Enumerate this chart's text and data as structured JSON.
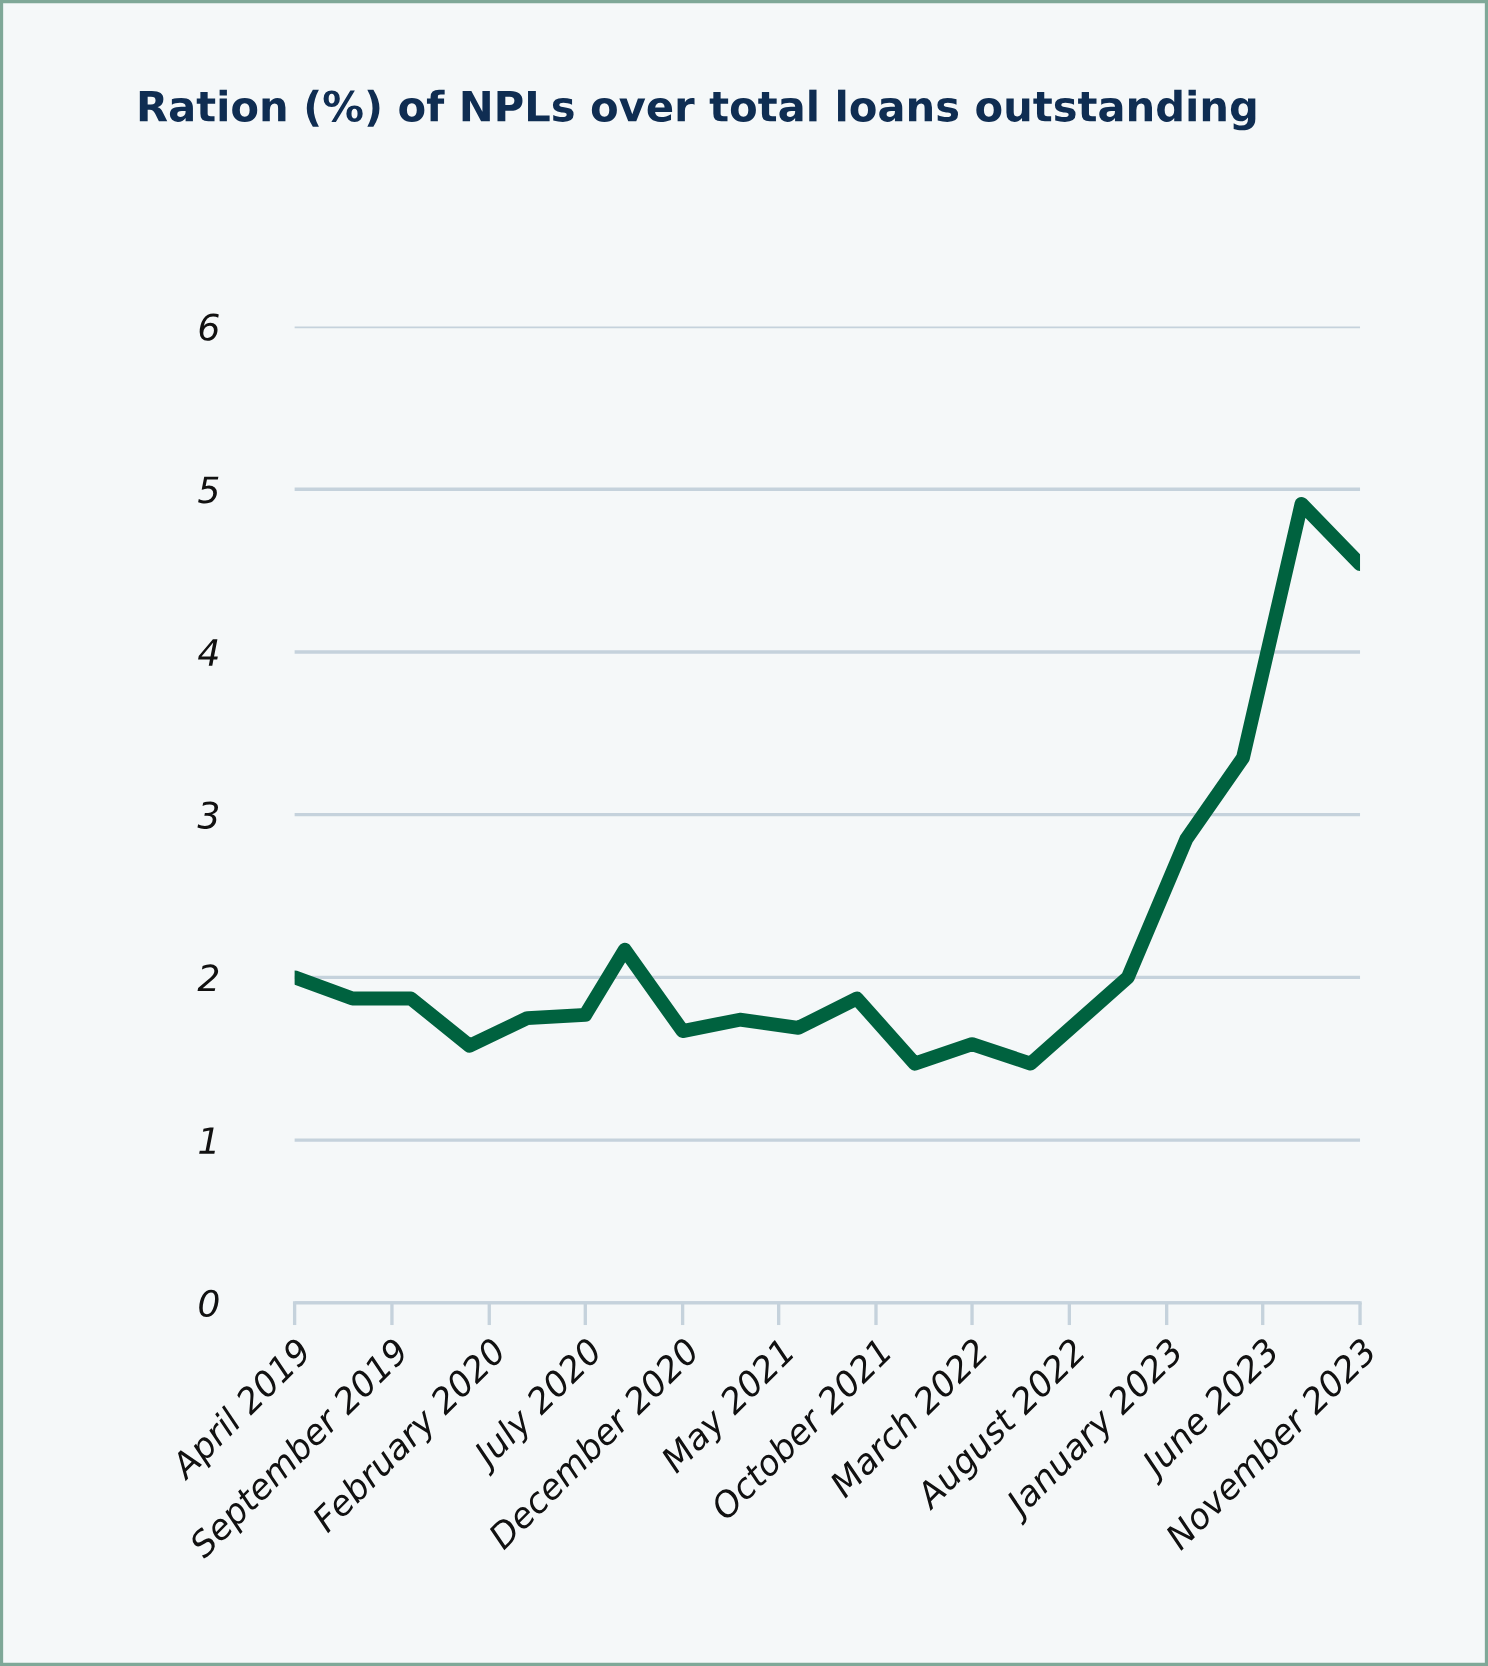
{
  "chart_data": {
    "type": "line",
    "title": "Ration (%) of NPLs over total loans outstanding",
    "x": [
      "2019-04",
      "2019-07",
      "2019-10",
      "2020-01",
      "2020-04",
      "2020-07",
      "2020-09",
      "2020-12",
      "2021-03",
      "2021-06",
      "2021-09",
      "2021-12",
      "2022-03",
      "2022-06",
      "2022-11",
      "2023-02",
      "2023-05",
      "2023-08",
      "2023-11"
    ],
    "series": [
      {
        "color": "#00623f",
        "values": [
          2.0,
          1.87,
          1.87,
          1.58,
          1.75,
          1.77,
          2.17,
          1.67,
          1.74,
          1.69,
          1.87,
          1.47,
          1.59,
          1.47,
          2.0,
          2.85,
          3.35,
          4.91,
          4.54
        ]
      }
    ],
    "xlim": [
      "2019-04",
      "2023-11"
    ],
    "xticks": [
      {
        "value": "2019-04",
        "label": "April 2019"
      },
      {
        "value": "2019-09",
        "label": "September 2019"
      },
      {
        "value": "2020-02",
        "label": "February 2020"
      },
      {
        "value": "2020-07",
        "label": "July 2020"
      },
      {
        "value": "2020-12",
        "label": "December 2020"
      },
      {
        "value": "2021-05",
        "label": "May 2021"
      },
      {
        "value": "2021-10",
        "label": "October 2021"
      },
      {
        "value": "2022-03",
        "label": "March 2022"
      },
      {
        "value": "2022-08",
        "label": "August 2022"
      },
      {
        "value": "2023-01",
        "label": "January 2023"
      },
      {
        "value": "2023-06",
        "label": "June 2023"
      },
      {
        "value": "2023-11",
        "label": "November 2023"
      }
    ],
    "ylim": [
      0,
      6
    ],
    "yticks": [
      0,
      1,
      2,
      3,
      4,
      5,
      6
    ],
    "grid": "y",
    "legend": false,
    "marker": "none",
    "line_style": "solid"
  }
}
